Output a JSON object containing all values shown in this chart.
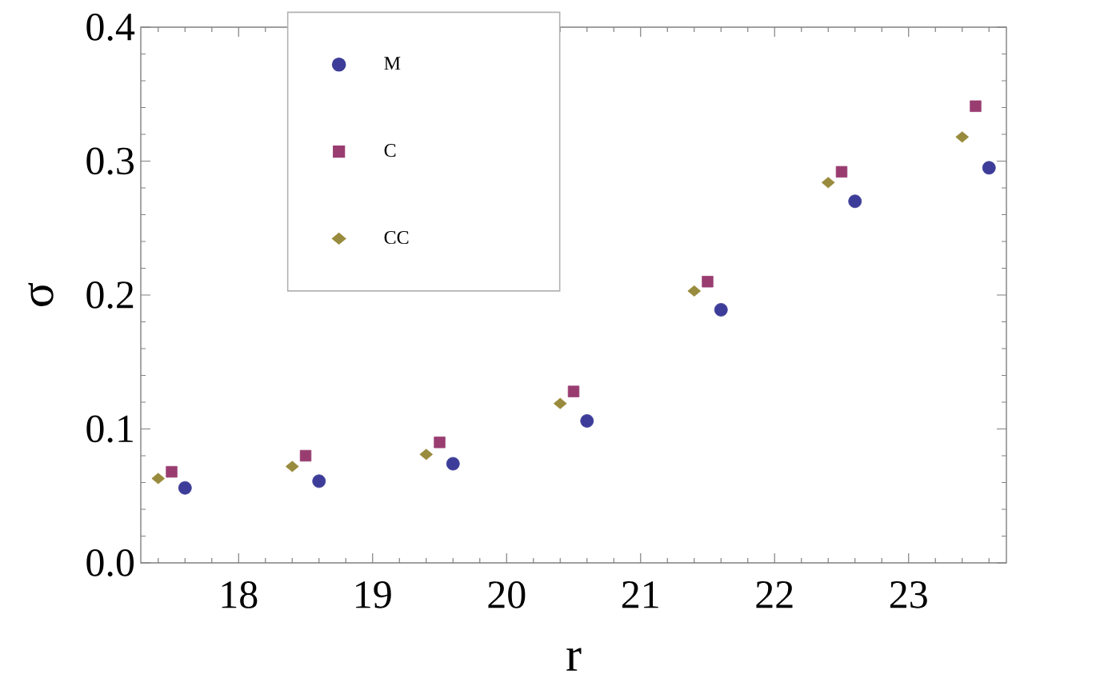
{
  "chart_data": {
    "type": "scatter",
    "xlabel": "r",
    "ylabel": "σ",
    "xlim": [
      17.27,
      23.73
    ],
    "ylim": [
      0,
      0.4
    ],
    "xticks": [
      18,
      19,
      20,
      21,
      22,
      23
    ],
    "yticks": [
      {
        "value": 0,
        "label": "0.0"
      },
      0.1,
      0.2,
      0.3,
      0.4
    ],
    "legend": "top left",
    "series": [
      {
        "name": "M",
        "color": "#3d3d99",
        "marker": "circle",
        "x": [
          17.6,
          18.6,
          19.6,
          20.6,
          21.6,
          22.6,
          23.6
        ],
        "values": [
          0.056,
          0.061,
          0.074,
          0.106,
          0.189,
          0.27,
          0.295
        ]
      },
      {
        "name": "C",
        "color": "#993d71",
        "marker": "square",
        "x": [
          17.5,
          18.5,
          19.5,
          20.5,
          21.5,
          22.5,
          23.5
        ],
        "values": [
          0.068,
          0.08,
          0.09,
          0.128,
          0.21,
          0.292,
          0.341
        ]
      },
      {
        "name": "CC",
        "color": "#998b3d",
        "marker": "diamond",
        "x": [
          17.4,
          18.4,
          19.4,
          20.4,
          21.4,
          22.4,
          23.4
        ],
        "values": [
          0.063,
          0.072,
          0.081,
          0.119,
          0.203,
          0.284,
          0.318
        ]
      }
    ]
  }
}
